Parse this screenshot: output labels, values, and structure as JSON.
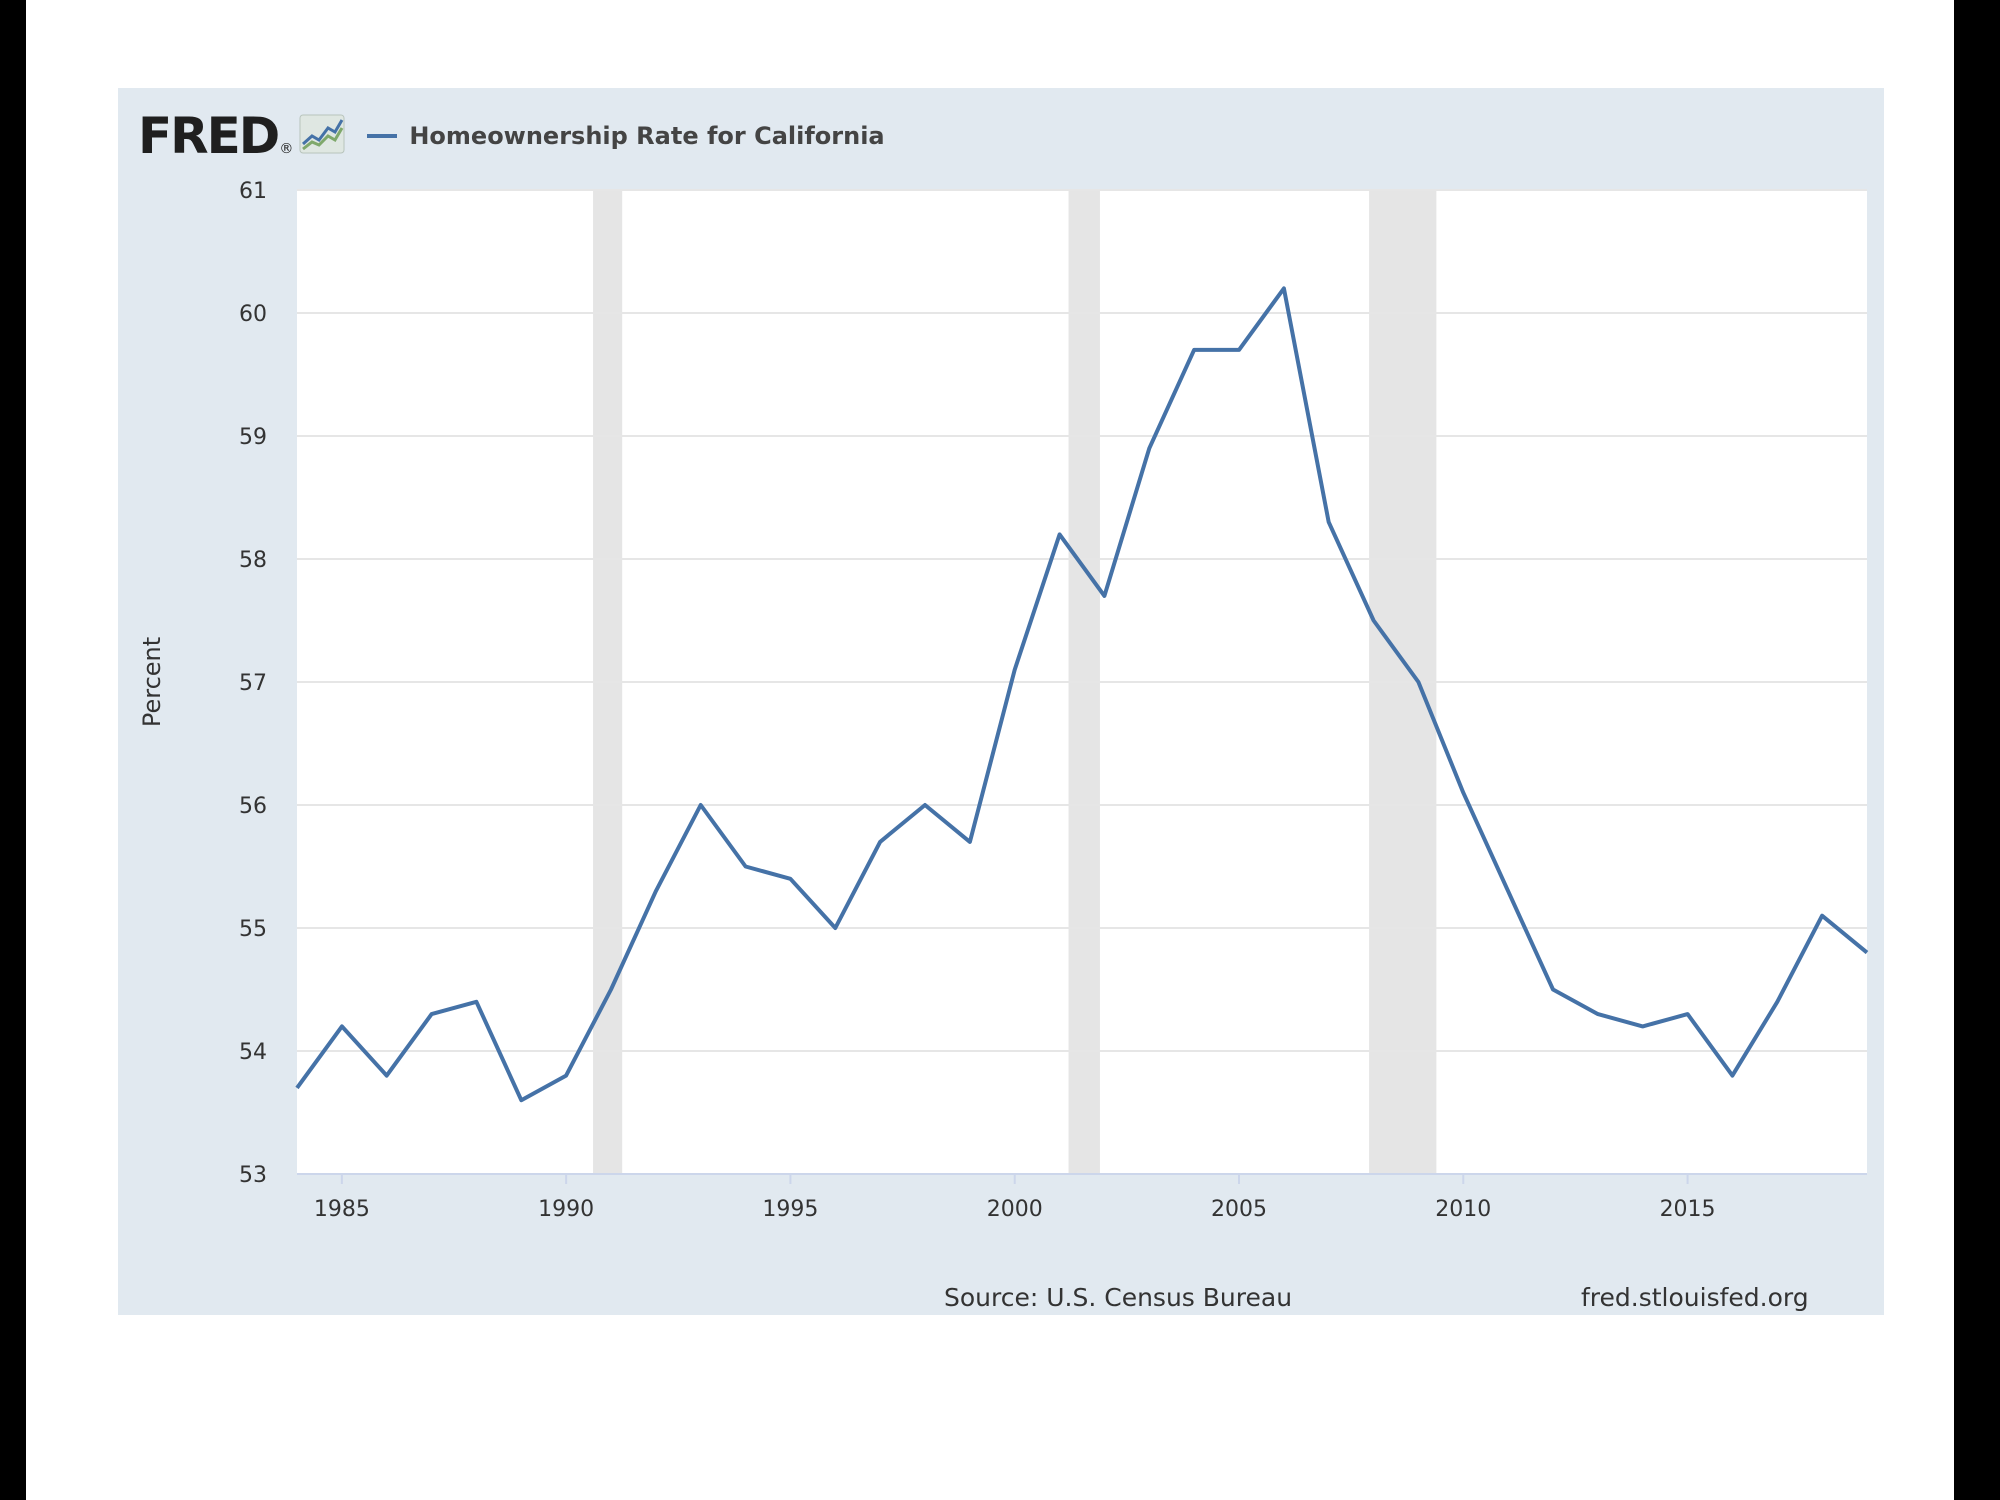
{
  "logo": {
    "text": "FRED",
    "dot": "®",
    "icon": "line-chart-icon"
  },
  "footer": {
    "source": "Source: U.S. Census Bureau",
    "site": "fred.stlouisfed.org"
  },
  "colors": {
    "line": "#4572a7",
    "recession": "#e5e5e5",
    "panel": "#e1e9f0",
    "plot": "#ffffff",
    "grid": "#e6e6e6"
  },
  "chart_data": {
    "type": "line",
    "title": "",
    "xlabel": "",
    "ylabel": "Percent",
    "xlim": [
      1984,
      2019
    ],
    "ylim": [
      53,
      61
    ],
    "x_ticks": [
      1985,
      1990,
      1995,
      2000,
      2005,
      2010,
      2015
    ],
    "y_ticks": [
      53,
      54,
      55,
      56,
      57,
      58,
      59,
      60,
      61
    ],
    "grid": true,
    "legend": "top-left",
    "recessions": [
      [
        1990.6,
        1991.25
      ],
      [
        2001.2,
        2001.9
      ],
      [
        2007.9,
        2009.4
      ]
    ],
    "series": [
      {
        "name": "Homeownership Rate for California",
        "x": [
          1984,
          1985,
          1986,
          1987,
          1988,
          1989,
          1990,
          1991,
          1992,
          1993,
          1994,
          1995,
          1996,
          1997,
          1998,
          1999,
          2000,
          2001,
          2002,
          2003,
          2004,
          2005,
          2006,
          2007,
          2008,
          2009,
          2010,
          2011,
          2012,
          2013,
          2014,
          2015,
          2016,
          2017,
          2018,
          2019
        ],
        "values": [
          53.7,
          54.2,
          53.8,
          54.3,
          54.4,
          53.6,
          53.8,
          54.5,
          55.3,
          56.0,
          55.5,
          55.4,
          55.0,
          55.7,
          56.0,
          55.7,
          57.1,
          58.2,
          57.7,
          58.9,
          59.7,
          59.7,
          60.2,
          58.3,
          57.5,
          57.0,
          56.1,
          55.3,
          54.5,
          54.3,
          54.2,
          54.3,
          53.8,
          54.4,
          55.1,
          54.8
        ]
      }
    ]
  }
}
